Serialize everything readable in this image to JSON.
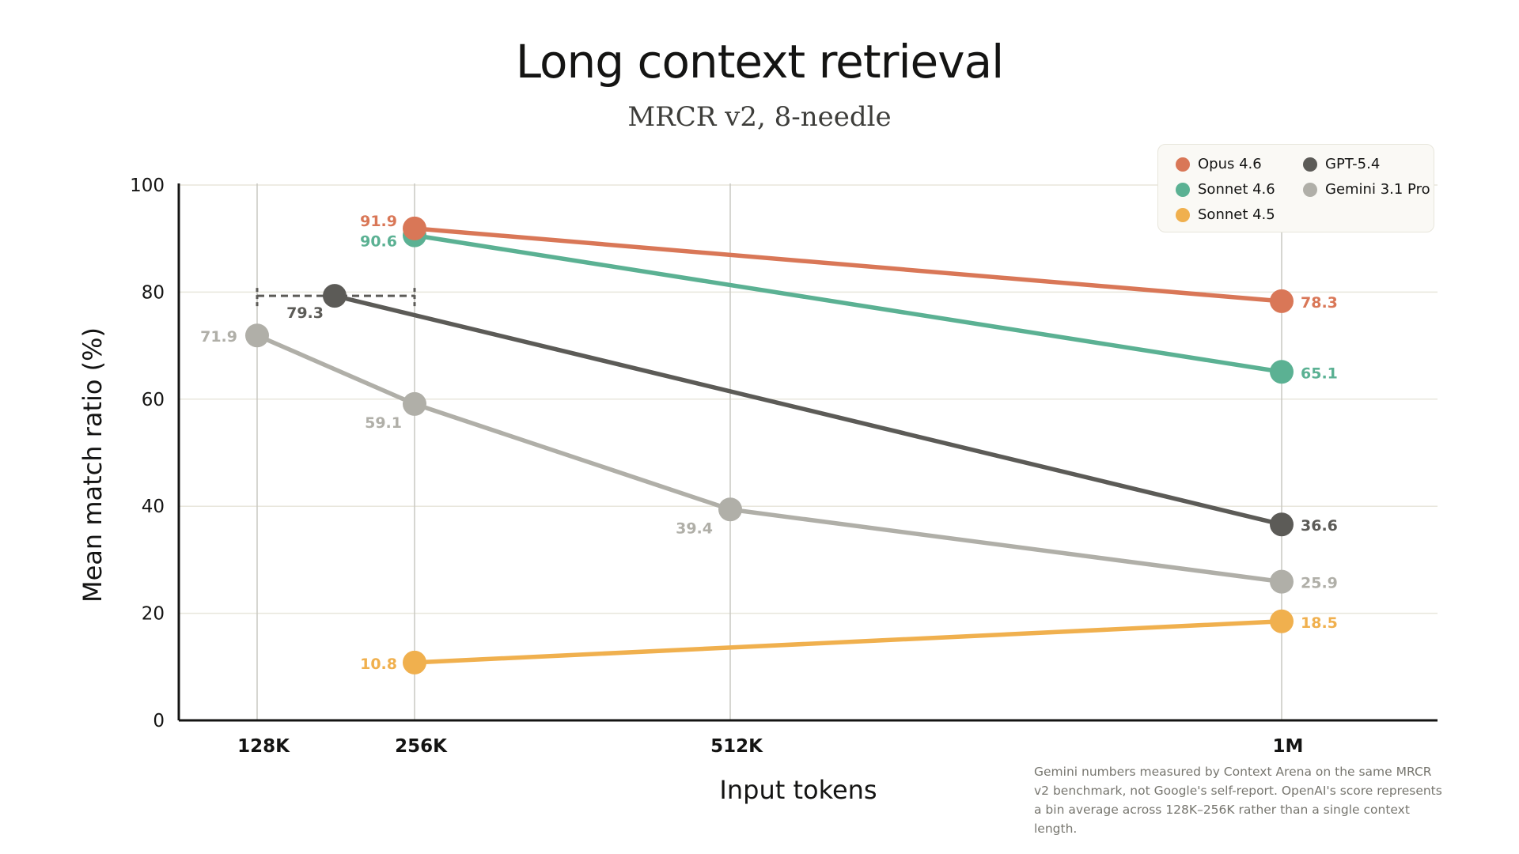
{
  "chart_data": {
    "type": "line",
    "title": "Long context retrieval",
    "subtitle": "MRCR v2, 8-needle",
    "xlabel": "Input tokens",
    "ylabel": "Mean match ratio (%)",
    "categories": [
      "128K",
      "256K",
      "512K",
      "1M"
    ],
    "ylim": [
      0,
      100
    ],
    "yticks": [
      0,
      20,
      40,
      60,
      80,
      100
    ],
    "grid": true,
    "legend_position": "top-right",
    "series": [
      {
        "name": "Opus 4.6",
        "color": "#D97757",
        "points": [
          {
            "x": "256K",
            "y": 91.9
          },
          {
            "x": "1M",
            "y": 78.3
          }
        ]
      },
      {
        "name": "Sonnet 4.6",
        "color": "#5BB193",
        "points": [
          {
            "x": "256K",
            "y": 90.6
          },
          {
            "x": "1M",
            "y": 65.1
          }
        ]
      },
      {
        "name": "Sonnet 4.5",
        "color": "#F0B04E",
        "points": [
          {
            "x": "256K",
            "y": 10.8
          },
          {
            "x": "1M",
            "y": 18.5
          }
        ]
      },
      {
        "name": "GPT-5.4",
        "color": "#5C5B57",
        "points": [
          {
            "x": "128K–256K",
            "y": 79.3
          },
          {
            "x": "1M",
            "y": 36.6
          }
        ]
      },
      {
        "name": "Gemini 3.1 Pro",
        "color": "#B0AFA8",
        "points": [
          {
            "x": "128K",
            "y": 71.9
          },
          {
            "x": "256K",
            "y": 59.1
          },
          {
            "x": "512K",
            "y": 39.4
          },
          {
            "x": "1M",
            "y": 25.9
          }
        ]
      }
    ],
    "footnote": "Gemini numbers measured by Context Arena on the same MRCR v2 benchmark, not Google's self-report. OpenAI's score represents a bin average across 128K–256K rather than a single context length."
  }
}
